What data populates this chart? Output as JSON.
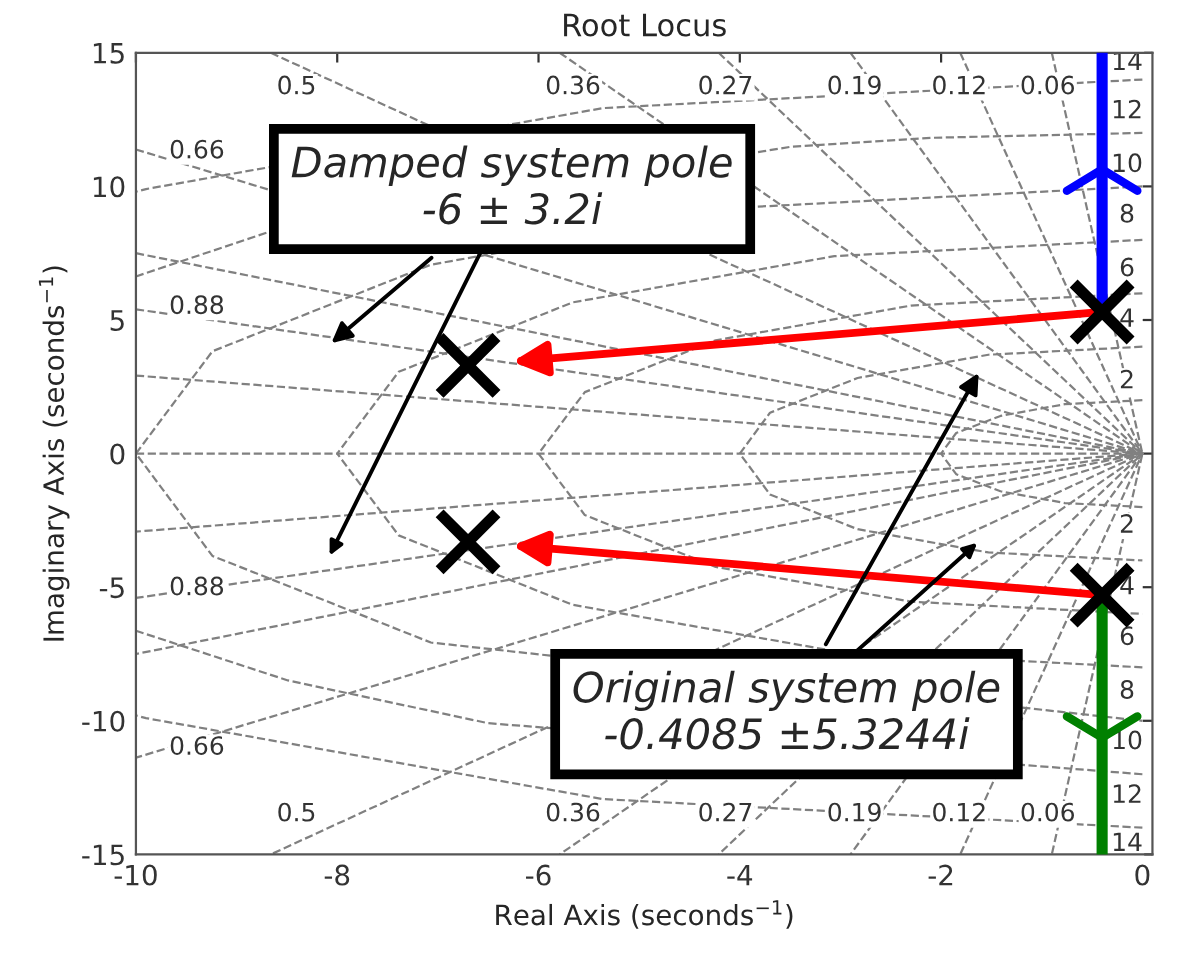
{
  "chart_data": {
    "type": "scatter",
    "title": "Root Locus",
    "xlabel": "Real Axis (seconds$^{−1}$)",
    "ylabel": "Imaginary Axis (seconds$^{−1}$)",
    "xlim": [
      -10,
      0.1
    ],
    "ylim": [
      -15,
      15
    ],
    "xticks": [
      -10,
      -8,
      -6,
      -4,
      -2,
      0
    ],
    "yticks": [
      -15,
      -10,
      -5,
      0,
      5,
      10,
      15
    ],
    "grid": false,
    "legend": false,
    "series": [
      {
        "type": "line",
        "line_style": "dashed",
        "color": "#808080",
        "x": [
          -0.9,
          0,
          -0.9
        ],
        "values": [
          15,
          0,
          -15
        ]
      },
      {
        "type": "line",
        "line_style": "dashed",
        "color": "#808080",
        "x": [
          -1.81,
          0,
          -1.81
        ],
        "values": [
          15,
          0,
          -15
        ]
      },
      {
        "type": "line",
        "line_style": "dashed",
        "color": "#808080",
        "x": [
          -2.9,
          0,
          -2.9
        ],
        "values": [
          15,
          0,
          -15
        ]
      },
      {
        "type": "line",
        "line_style": "dashed",
        "color": "#808080",
        "x": [
          -4.21,
          0,
          -4.21
        ],
        "values": [
          15,
          0,
          -15
        ]
      },
      {
        "type": "line",
        "line_style": "dashed",
        "color": "#808080",
        "x": [
          -5.79,
          0,
          -5.79
        ],
        "values": [
          15,
          0,
          -15
        ]
      },
      {
        "type": "line",
        "line_style": "dashed",
        "color": "#808080",
        "x": [
          -8.66,
          0,
          -8.66
        ],
        "values": [
          15,
          0,
          -15
        ]
      },
      {
        "type": "line",
        "line_style": "dashed",
        "color": "#808080",
        "x": [
          -10,
          0,
          -10
        ],
        "values": [
          11.38,
          0,
          -11.38
        ]
      },
      {
        "type": "line",
        "line_style": "dashed",
        "color": "#808080",
        "x": [
          -10,
          0,
          -10
        ],
        "values": [
          7.5,
          0,
          -7.5
        ]
      },
      {
        "type": "line",
        "line_style": "dashed",
        "color": "#808080",
        "x": [
          -10,
          0,
          -10
        ],
        "values": [
          5.4,
          0,
          -5.4
        ]
      },
      {
        "type": "line",
        "line_style": "dashed",
        "color": "#808080",
        "x": [
          -10,
          0,
          -10
        ],
        "values": [
          2.92,
          0,
          -2.92
        ]
      },
      {
        "type": "line",
        "line_style": "dashed",
        "color": "#808080",
        "x": [
          -10,
          0
        ],
        "values": [
          0,
          0
        ]
      },
      {
        "type": "line",
        "line_style": "dashed",
        "color": "#808080",
        "x": [
          0,
          -0.77,
          -1.41,
          -1.85,
          -2,
          -1.85,
          -1.41,
          -0.77,
          0
        ],
        "values": [
          2,
          1.85,
          1.41,
          0.77,
          0,
          -0.77,
          -1.41,
          -1.85,
          -2
        ]
      },
      {
        "type": "line",
        "line_style": "dashed",
        "color": "#808080",
        "x": [
          0,
          -1.53,
          -2.83,
          -3.7,
          -4,
          -3.7,
          -2.83,
          -1.53,
          0
        ],
        "values": [
          4,
          3.7,
          2.83,
          1.53,
          0,
          -1.53,
          -2.83,
          -3.7,
          -4
        ]
      },
      {
        "type": "line",
        "line_style": "dashed",
        "color": "#808080",
        "x": [
          0,
          -2.3,
          -4.24,
          -5.54,
          -6,
          -5.54,
          -4.24,
          -2.3,
          0
        ],
        "values": [
          6,
          5.54,
          4.24,
          2.3,
          0,
          -2.3,
          -4.24,
          -5.54,
          -6
        ]
      },
      {
        "type": "line",
        "line_style": "dashed",
        "color": "#808080",
        "x": [
          0,
          -3.06,
          -5.66,
          -7.39,
          -8,
          -7.39,
          -5.66,
          -3.06,
          0
        ],
        "values": [
          8,
          7.39,
          5.66,
          3.06,
          0,
          -3.06,
          -5.66,
          -7.39,
          -8
        ]
      },
      {
        "type": "line",
        "line_style": "dashed",
        "color": "#808080",
        "x": [
          0,
          -3.83,
          -7.07,
          -9.24,
          -10,
          -9.24,
          -7.07,
          0
        ],
        "values": [
          10,
          9.24,
          7.07,
          3.83,
          0,
          -3.83,
          -7.07,
          -10
        ]
      },
      {
        "type": "line",
        "line_style": "dashed",
        "color": "#808080",
        "x": [
          0,
          -2.08,
          -3.5,
          -8.7,
          -10
        ],
        "values": [
          12,
          11.82,
          11.48,
          8.27,
          6.63
        ]
      },
      {
        "type": "line",
        "line_style": "dashed",
        "color": "#808080",
        "x": [
          0,
          -6.5,
          -8.49,
          -10
        ],
        "values": [
          -12,
          -10.09,
          -8.49,
          -6.63
        ]
      },
      {
        "type": "line",
        "line_style": "dashed",
        "color": "#808080",
        "x": [
          0,
          -5.36,
          -9.9,
          -10
        ],
        "values": [
          14,
          12.93,
          9.9,
          9.8
        ]
      },
      {
        "type": "line",
        "line_style": "dashed",
        "color": "#808080",
        "x": [
          0,
          -5.36,
          -9.9,
          -10
        ],
        "values": [
          -14,
          -12.93,
          -9.9,
          -9.8
        ]
      },
      {
        "type": "line",
        "line_style": "solid",
        "color": "#0000ff",
        "x": [
          -0.4,
          -0.4
        ],
        "values": [
          5.3,
          15
        ]
      },
      {
        "type": "line",
        "line_style": "solid",
        "color": "#008000",
        "x": [
          -0.4,
          -0.4
        ],
        "values": [
          -5.3,
          -15
        ]
      },
      {
        "marker": "cross",
        "color": "#000000",
        "x": [
          -0.4,
          -0.4,
          -6.7,
          -6.7
        ],
        "values": [
          5.3,
          -5.3,
          3.3,
          -3.3
        ]
      }
    ],
    "annotations": [
      {
        "text": "Damped system pole\n-6 ± 3.2i",
        "x": -8.1,
        "y": 4.0
      },
      {
        "text": "Original system pole\n-0.4085 ±5.3244i",
        "x": -1.6,
        "y": 3.2
      },
      "0.5",
      "0.36",
      "0.27",
      "0.19",
      "0.12",
      "0.06",
      "0.5",
      "0.36",
      "0.27",
      "0.19",
      "0.12",
      "0.06",
      "0.66",
      "0.88",
      "0.88",
      "0.66",
      "14",
      "12",
      "10",
      "8",
      "6",
      "4",
      "2",
      "2",
      "4",
      "6",
      "8",
      "10",
      "12",
      "14"
    ]
  }
}
